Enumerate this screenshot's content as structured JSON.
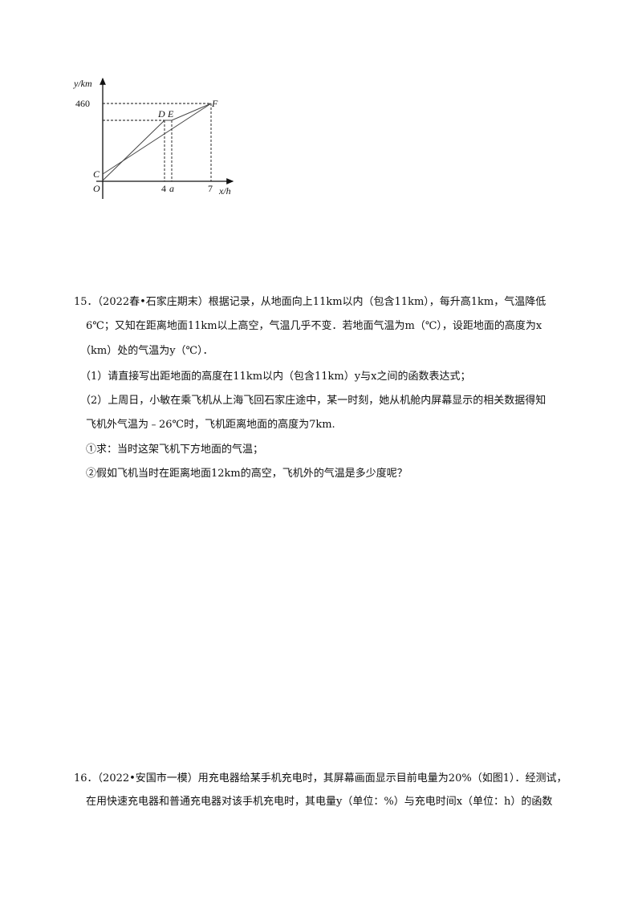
{
  "figure": {
    "y_axis_label": "y/km",
    "x_axis_label": "x/h",
    "y_tick": "460",
    "x_ticks": [
      "4",
      "a",
      "7"
    ],
    "origin": "O",
    "points": [
      "C",
      "D",
      "E",
      "F"
    ]
  },
  "q15": {
    "lines": [
      "15．（2022春•石家庄期末）根据记录，从地面向上11km以内（包含11km），每升高1km，气温降低",
      "6℃；又知在距离地面11km以上高空，气温几乎不变．若地面气温为m（℃），设距地面的高度为x",
      "（km）处的气温为y（℃）．",
      "（1）请直接写出距地面的高度在11km以内（包含11km）y与x之间的函数表达式；",
      "（2）上周日，小敏在乘飞机从上海飞回石家庄途中，某一时刻，她从机舱内屏幕显示的相关数据得知",
      "飞机外气温为﹣26℃时，飞机距离地面的高度为7km.",
      "①求：当时这架飞机下方地面的气温；",
      "②假如飞机当时在距离地面12km的高空，飞机外的气温是多少度呢？"
    ]
  },
  "q16": {
    "lines": [
      "16．（2022•安国市一模）用充电器给某手机充电时，其屏幕画面显示目前电量为20%（如图1）．经测试，",
      "在用快速充电器和普通充电器对该手机充电时，其电量y（单位：%）与充电时间x（单位：h）的函数"
    ]
  }
}
